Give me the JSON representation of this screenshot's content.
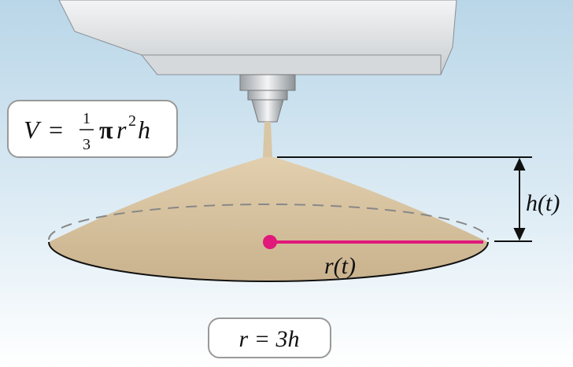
{
  "formula": {
    "lhs": "V",
    "equals": "=",
    "numerator": "1",
    "denominator": "3",
    "pi": "π",
    "r": "r",
    "exponent": "2",
    "h": "h"
  },
  "labels": {
    "height": "h(t)",
    "radius": "r(t)"
  },
  "relation": "r = 3h"
}
